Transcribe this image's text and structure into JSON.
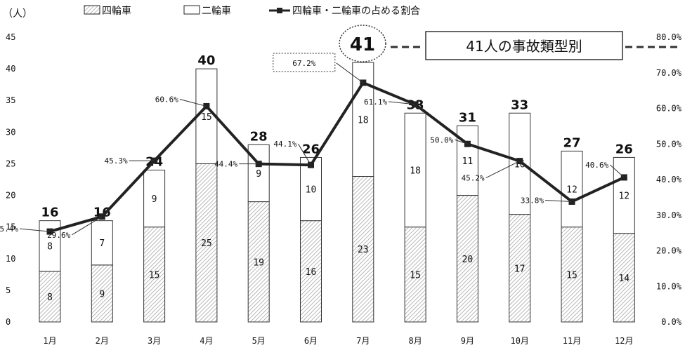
{
  "chart_data": {
    "type": "bar",
    "categories": [
      "1月",
      "2月",
      "3月",
      "4月",
      "5月",
      "6月",
      "7月",
      "8月",
      "9月",
      "10月",
      "11月",
      "12月"
    ],
    "series": [
      {
        "name": "四輪車",
        "values": [
          8,
          9,
          15,
          25,
          19,
          16,
          23,
          15,
          20,
          17,
          15,
          14
        ],
        "stack": true
      },
      {
        "name": "二輪車",
        "values": [
          8,
          7,
          9,
          15,
          9,
          10,
          18,
          18,
          11,
          16,
          12,
          12
        ],
        "stack": true
      }
    ],
    "totals": [
      16,
      16,
      24,
      40,
      28,
      26,
      41,
      33,
      31,
      33,
      27,
      26
    ],
    "line_series": {
      "name": "四輪車・二輪車の占める割合",
      "values": [
        25.4,
        29.6,
        45.3,
        60.6,
        44.4,
        44.1,
        67.2,
        61.1,
        50.0,
        45.2,
        33.8,
        40.6
      ],
      "labels": [
        "25.4%",
        "29.6%",
        "45.3%",
        "60.6%",
        "44.4%",
        "44.1%",
        "67.2%",
        "61.1%",
        "50.0%",
        "45.2%",
        "33.8%",
        "40.6%"
      ]
    },
    "y_left": {
      "unit": "（人）",
      "ticks": [
        "0",
        "5",
        "10",
        "15",
        "20",
        "25",
        "30",
        "35",
        "40",
        "45"
      ],
      "range": [
        0,
        45
      ]
    },
    "y_right": {
      "ticks": [
        "0.0%",
        "10.0%",
        "20.0%",
        "30.0%",
        "40.0%",
        "50.0%",
        "60.0%",
        "70.0%",
        "80.0%"
      ],
      "range": [
        0,
        80
      ]
    },
    "annotation": {
      "value": "41",
      "text": "41人の事故類型別"
    },
    "legend_placement": "top",
    "grid": false
  }
}
